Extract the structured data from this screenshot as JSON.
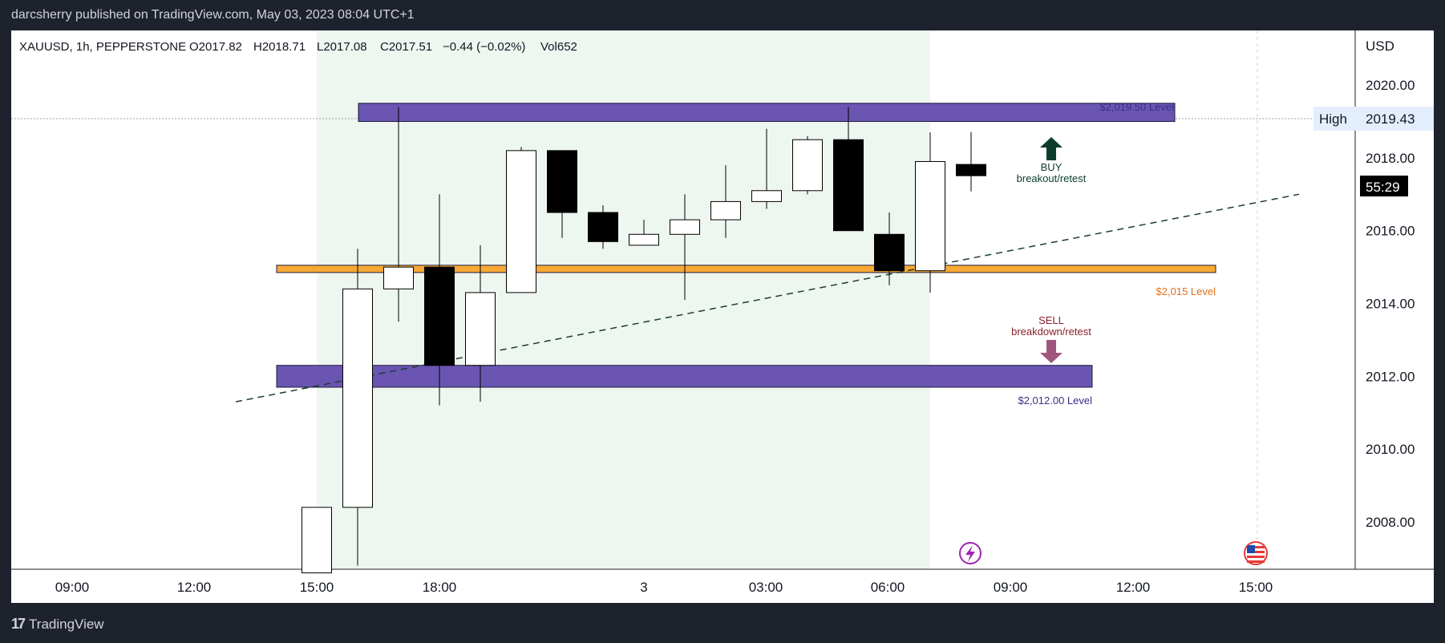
{
  "header": {
    "published": "darcsherry published on TradingView.com, May 03, 2023 08:04 UTC+1"
  },
  "footer": {
    "brand": "TradingView"
  },
  "legend": {
    "symbol": "XAUUSD, 1h, PEPPERSTONE",
    "open": "O2017.82",
    "high": "H2018.71",
    "low": "L2017.08",
    "close": "C2017.51",
    "change": "−0.44 (−0.02%)",
    "volume": "Vol652"
  },
  "price_axis": {
    "currency": "USD",
    "high_label": "High",
    "high_value": "2019.43",
    "countdown": "55:29",
    "ticks": [
      "2020.00",
      "2018.00",
      "2016.00",
      "2014.00",
      "2012.00",
      "2010.00",
      "2008.00"
    ]
  },
  "time_axis": {
    "labels": [
      "09:00",
      "12:00",
      "15:00",
      "18:00",
      "3",
      "03:00",
      "06:00",
      "09:00",
      "12:00",
      "15:00"
    ]
  },
  "annotations": {
    "top_level_label": "$2,019.50 Level",
    "mid_level_label": "$2,015 Level",
    "low_level_label": "$2,012.00 Level",
    "buy_label_1": "BUY",
    "buy_label_2": "breakout/retest",
    "sell_label_1": "SELL",
    "sell_label_2": "breakdown/retest"
  },
  "colors": {
    "level_purple": "#6a55b3",
    "level_orange": "#f7a935",
    "buy_arrow": "#0b3d2a",
    "sell_arrow": "#a0577e",
    "bull_candle": "#ffffff",
    "bear_candle": "#000000"
  },
  "chart_data": {
    "type": "candlestick",
    "symbol": "XAUUSD",
    "timeframe": "1h",
    "ylim": [
      2006.7,
      2021.5
    ],
    "candles": [
      {
        "time": "15:00",
        "open": 2006.6,
        "high": 2008.4,
        "low": 2006.6,
        "close": 2008.4
      },
      {
        "time": "16:00",
        "open": 2008.4,
        "high": 2015.5,
        "low": 2006.8,
        "close": 2014.4
      },
      {
        "time": "17:00",
        "open": 2014.4,
        "high": 2019.4,
        "low": 2013.5,
        "close": 2015.0
      },
      {
        "time": "18:00",
        "open": 2015.0,
        "high": 2017.0,
        "low": 2011.2,
        "close": 2012.3
      },
      {
        "time": "19:00",
        "open": 2012.3,
        "high": 2015.6,
        "low": 2011.3,
        "close": 2014.3
      },
      {
        "time": "20:00",
        "open": 2014.3,
        "high": 2018.3,
        "low": 2014.3,
        "close": 2018.2
      },
      {
        "time": "21:00",
        "open": 2018.2,
        "high": 2018.2,
        "low": 2015.8,
        "close": 2016.5
      },
      {
        "time": "22:00",
        "open": 2016.5,
        "high": 2016.7,
        "low": 2015.5,
        "close": 2015.7
      },
      {
        "time": "23:00",
        "open": 2015.6,
        "high": 2016.3,
        "low": 2015.6,
        "close": 2015.9
      },
      {
        "time": "00:00",
        "open": 2015.9,
        "high": 2017.0,
        "low": 2014.1,
        "close": 2016.3
      },
      {
        "time": "01:00",
        "open": 2016.3,
        "high": 2017.8,
        "low": 2015.8,
        "close": 2016.8
      },
      {
        "time": "02:00",
        "open": 2016.8,
        "high": 2018.8,
        "low": 2016.6,
        "close": 2017.1
      },
      {
        "time": "03:00",
        "open": 2017.1,
        "high": 2018.6,
        "low": 2017.0,
        "close": 2018.5
      },
      {
        "time": "04:00",
        "open": 2018.5,
        "high": 2019.4,
        "low": 2016.0,
        "close": 2016.0
      },
      {
        "time": "05:00",
        "open": 2015.9,
        "high": 2016.5,
        "low": 2014.5,
        "close": 2014.9
      },
      {
        "time": "06:00",
        "open": 2014.9,
        "high": 2018.7,
        "low": 2014.3,
        "close": 2017.9
      },
      {
        "time": "07:00",
        "open": 2017.82,
        "high": 2018.71,
        "low": 2017.08,
        "close": 2017.51
      }
    ],
    "levels": [
      {
        "name": "$2,019.50 Level",
        "low": 2019.0,
        "high": 2019.5
      },
      {
        "name": "$2,015 Level",
        "low": 2014.85,
        "high": 2015.05
      },
      {
        "name": "$2,012.00 Level",
        "low": 2011.7,
        "high": 2012.3
      }
    ],
    "trendline": {
      "from": 2011.3,
      "to": 2017.0
    }
  }
}
